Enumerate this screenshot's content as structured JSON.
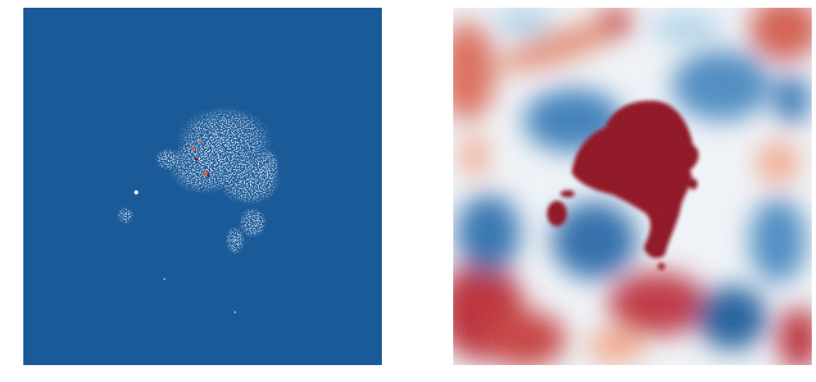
{
  "figure": {
    "panels": [
      {
        "id": "left",
        "description_keyword": "rdbu-colormap-map-mostly-uniform-blue-with-sparse-speckled-structure",
        "colors": {
          "background": "#1b5a98",
          "speckle_light": "#e6f0f8",
          "speckle_mid": "#8fbbdc",
          "speckle_red": "#d6604d",
          "speckle_darkred": "#8b0a1f"
        }
      },
      {
        "id": "right",
        "description_keyword": "rdbu-colormap-smooth-field-with-central-dark-red-blob",
        "colors": {
          "darkred": "#8b0a1f",
          "red": "#c43c3c",
          "lightred": "#f2a68a",
          "white": "#f2f4f6",
          "lightblue": "#a9cfe6",
          "blue": "#3a7cb8",
          "darkblue": "#134d88"
        }
      }
    ]
  }
}
